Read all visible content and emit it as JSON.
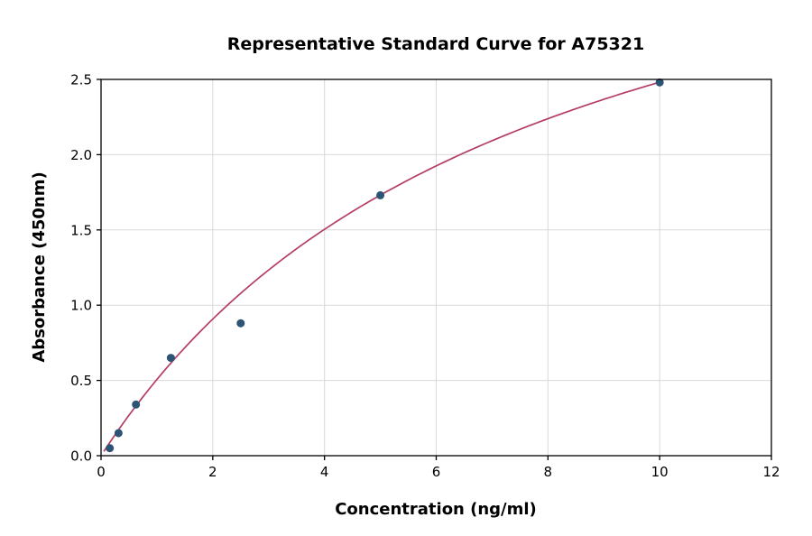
{
  "chart_data": {
    "type": "scatter",
    "title": "Representative Standard Curve for A75321",
    "xlabel": "Concentration (ng/ml)",
    "ylabel": "Absorbance (450nm)",
    "xlim": [
      0,
      12
    ],
    "ylim": [
      0,
      2.5
    ],
    "xticks": [
      0,
      2,
      4,
      6,
      8,
      10,
      12
    ],
    "xtick_labels": [
      "0",
      "2",
      "4",
      "6",
      "8",
      "10",
      "12"
    ],
    "yticks": [
      0,
      0.5,
      1,
      1.5,
      2,
      2.5
    ],
    "ytick_labels": [
      "0.0",
      "0.5",
      "1.0",
      "1.5",
      "2.0",
      "2.5"
    ],
    "grid": true,
    "legend": "none",
    "points": [
      {
        "x": 0.156,
        "y": 0.05
      },
      {
        "x": 0.313,
        "y": 0.15
      },
      {
        "x": 0.625,
        "y": 0.34
      },
      {
        "x": 1.25,
        "y": 0.65
      },
      {
        "x": 2.5,
        "y": 0.88
      },
      {
        "x": 5,
        "y": 1.73
      },
      {
        "x": 10,
        "y": 2.48
      }
    ],
    "trendline": {
      "type": "saturation-fit",
      "formula": "y = a*x / (b + x)",
      "a": 4.38,
      "b": 7.65,
      "x_start": 0.05,
      "x_end": 10.0
    },
    "colors": {
      "points": "#2d5475",
      "curve": "#b43d63",
      "grid": "#d9d9d9",
      "axis": "#000000",
      "background": "#ffffff"
    }
  }
}
